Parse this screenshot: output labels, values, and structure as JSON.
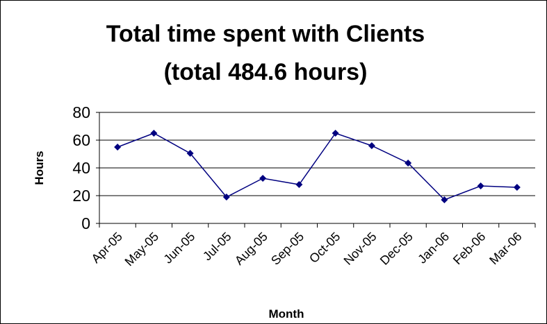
{
  "chart_data": {
    "type": "line",
    "title": [
      "Total time spent with Clients",
      "(total 484.6 hours)"
    ],
    "x_label": "Month",
    "y_label": "Hours",
    "categories": [
      "Apr-05",
      "May-05",
      "Jun-05",
      "Jul-05",
      "Aug-05",
      "Sep-05",
      "Oct-05",
      "Nov-05",
      "Dec-05",
      "Jan-06",
      "Feb-06",
      "Mar-06"
    ],
    "series": [
      {
        "name": "Hours",
        "color": "#000080",
        "values": [
          55,
          65,
          50.5,
          19,
          32.5,
          28,
          65,
          56,
          43.5,
          17,
          27,
          26
        ]
      }
    ],
    "ylim": [
      0,
      80
    ],
    "yticks": [
      0,
      20,
      40,
      60,
      80
    ],
    "grid": true
  }
}
